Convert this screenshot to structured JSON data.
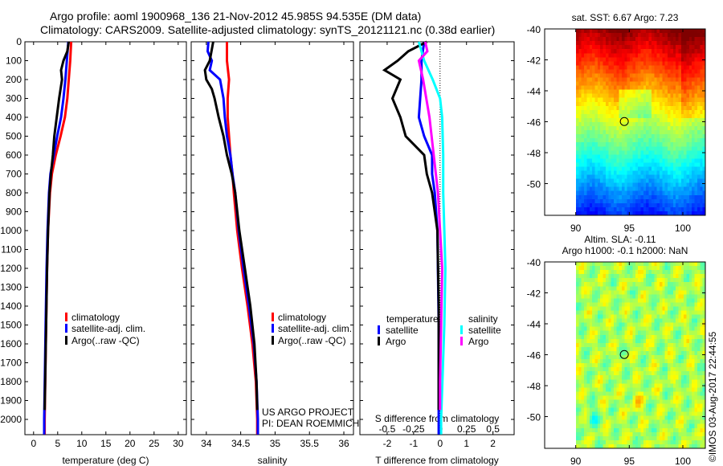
{
  "title": {
    "line1": "Argo profile: aoml 1900968_136 21-Nov-2012 45.985S 94.535E (DM data)",
    "line2": "Climatology: CARS2009. Satellite-adjusted climatology: synTS_20121121.nc (0.38d earlier)"
  },
  "footer_stamp": "©IMOS 03-Aug-2017 22:44:55",
  "colors": {
    "climatology": "#ff0000",
    "satellite": "#0000ff",
    "argo": "#000000",
    "s_satellite": "#00ffff",
    "s_argo": "#ff00ff"
  },
  "chart_data": [
    {
      "type": "line",
      "name": "temperature-profile",
      "xlabel": "temperature (deg C)",
      "ylabel": "",
      "xlim": [
        -1.8,
        31.7
      ],
      "ylim": [
        2080,
        0
      ],
      "xticks": [
        "0",
        "5",
        "10",
        "15",
        "20",
        "25",
        "30"
      ],
      "xtick_values": [
        0,
        5,
        10,
        15,
        20,
        25,
        30
      ],
      "yticks": [
        "0",
        "100",
        "200",
        "300",
        "400",
        "500",
        "600",
        "700",
        "800",
        "900",
        "1000",
        "1100",
        "1200",
        "1300",
        "1400",
        "1500",
        "1600",
        "1700",
        "1800",
        "1900",
        "2000"
      ],
      "legend": [
        "climatology",
        "satellite-adj. clim.",
        "Argo(..raw -QC)"
      ],
      "series": [
        {
          "name": "climatology",
          "color": "#ff0000",
          "depth": [
            0,
            100,
            200,
            300,
            400,
            500,
            600,
            700,
            800,
            1000,
            1200,
            1500,
            2000,
            2080
          ],
          "values": [
            7.8,
            7.6,
            7.3,
            7.0,
            6.5,
            5.6,
            4.6,
            3.8,
            3.4,
            3.0,
            2.8,
            2.6,
            2.3,
            2.3
          ]
        },
        {
          "name": "satellite-adj. clim.",
          "color": "#0000ff",
          "depth": [
            0,
            100,
            200,
            300,
            400,
            500,
            600,
            700,
            800,
            1000,
            1200,
            1500,
            2000,
            2080
          ],
          "values": [
            7.2,
            6.9,
            6.6,
            6.2,
            5.7,
            4.9,
            4.2,
            3.5,
            3.2,
            2.9,
            2.7,
            2.5,
            2.2,
            2.2
          ]
        },
        {
          "name": "Argo(..raw -QC)",
          "color": "#000000",
          "depth": [
            0,
            50,
            100,
            150,
            200,
            300,
            400,
            500,
            600,
            700,
            800,
            1000,
            1200,
            1500,
            1950
          ],
          "values": [
            7.3,
            7.0,
            6.2,
            5.7,
            5.9,
            5.3,
            4.8,
            4.3,
            4.0,
            3.6,
            3.3,
            3.0,
            2.8,
            2.6,
            2.3
          ]
        }
      ]
    },
    {
      "type": "line",
      "name": "salinity-profile",
      "xlabel": "salinity",
      "xlim": [
        33.78,
        36.14
      ],
      "ylim": [
        2080,
        0
      ],
      "xticks": [
        "34",
        "34.5",
        "35",
        "35.5",
        "36"
      ],
      "xtick_values": [
        34,
        34.5,
        35,
        35.5,
        36
      ],
      "legend": [
        "climatology",
        "satellite-adj. clim.",
        "Argo(..raw -QC)"
      ],
      "annotation": [
        "US ARGO PROJECT",
        "PI: DEAN ROEMMICH"
      ],
      "series": [
        {
          "name": "climatology",
          "color": "#ff0000",
          "depth": [
            0,
            100,
            200,
            300,
            400,
            500,
            600,
            700,
            800,
            1000,
            1200,
            1400,
            1600,
            1800,
            2000,
            2080
          ],
          "values": [
            34.3,
            34.3,
            34.33,
            34.31,
            34.31,
            34.33,
            34.35,
            34.38,
            34.4,
            34.45,
            34.52,
            34.6,
            34.67,
            34.72,
            34.74,
            34.74
          ]
        },
        {
          "name": "satellite-adj. clim.",
          "color": "#0000ff",
          "depth": [
            0,
            50,
            100,
            150,
            200,
            300,
            400,
            500,
            600,
            700,
            800,
            1000,
            1200,
            1400,
            1600,
            1800,
            2000,
            2080
          ],
          "values": [
            34.03,
            34.02,
            34.08,
            34.05,
            34.2,
            34.25,
            34.27,
            34.3,
            34.35,
            34.38,
            34.42,
            34.47,
            34.54,
            34.62,
            34.69,
            34.73,
            34.75,
            34.75
          ]
        },
        {
          "name": "Argo(..raw -QC)",
          "color": "#000000",
          "depth": [
            0,
            100,
            150,
            200,
            250,
            300,
            400,
            500,
            600,
            700,
            800,
            1000,
            1200,
            1400,
            1600,
            1800,
            1950
          ],
          "values": [
            34.1,
            34.05,
            33.98,
            34.0,
            34.08,
            34.12,
            34.18,
            34.25,
            34.3,
            34.37,
            34.42,
            34.48,
            34.56,
            34.64,
            34.7,
            34.73,
            34.74
          ]
        }
      ]
    },
    {
      "type": "line",
      "name": "difference-profile",
      "xlabel": "T difference from climatology",
      "xlabel_top": "S difference from climatology",
      "xlim": [
        -3.03,
        2.8
      ],
      "ylim": [
        2080,
        0
      ],
      "xticks": [
        "-2",
        "-1",
        "0",
        "1",
        "2"
      ],
      "xtick_values": [
        -2,
        -1,
        0,
        1,
        2
      ],
      "s_xticks": [
        "-0.5",
        "-0.25",
        "0",
        "0.25",
        "0.5"
      ],
      "s_xtick_values": [
        -0.5,
        -0.25,
        0,
        0.25,
        0.5
      ],
      "legend": {
        "temperature_title": "temperature",
        "salinity_title": "salinity",
        "t_satellite": "satellite",
        "t_argo": "Argo",
        "s_satellite": "satellite",
        "s_argo": "Argo"
      },
      "series": [
        {
          "name": "T satellite",
          "axis": "T",
          "color": "#0000ff",
          "depth": [
            0,
            100,
            200,
            400,
            500,
            600,
            700,
            800,
            1000,
            1500,
            2000,
            2080
          ],
          "values": [
            -0.6,
            -0.7,
            -0.7,
            -0.8,
            -0.6,
            -0.3,
            -0.3,
            -0.2,
            -0.1,
            -0.05,
            -0.05,
            -0.05
          ]
        },
        {
          "name": "T Argo",
          "axis": "T",
          "color": "#000000",
          "depth": [
            0,
            50,
            100,
            150,
            200,
            300,
            400,
            500,
            600,
            700,
            800,
            1000,
            1400,
            1800,
            1950
          ],
          "values": [
            -0.5,
            -1.2,
            -1.6,
            -2.1,
            -1.5,
            -1.8,
            -1.5,
            -1.3,
            -0.6,
            -0.5,
            -0.3,
            -0.1,
            -0.05,
            -0.05,
            -0.05
          ]
        },
        {
          "name": "S satellite",
          "axis": "S",
          "color": "#00ffff",
          "depth": [
            0,
            100,
            200,
            300,
            400,
            600,
            800,
            1000,
            1200,
            1500,
            2000,
            2080
          ],
          "values": [
            -0.2,
            -0.15,
            -0.07,
            0.0,
            0.02,
            0.03,
            0.03,
            0.04,
            0.05,
            0.04,
            0.01,
            0.01
          ]
        },
        {
          "name": "S Argo",
          "axis": "S",
          "color": "#ff00ff",
          "depth": [
            0,
            50,
            100,
            200,
            400,
            600,
            800,
            1000,
            1200,
            1500,
            1800,
            1950
          ],
          "values": [
            -0.14,
            -0.12,
            -0.2,
            -0.16,
            -0.1,
            -0.06,
            -0.02,
            0.0,
            0.02,
            0.01,
            0.0,
            0.0
          ]
        }
      ]
    },
    {
      "type": "heatmap",
      "name": "sst-map",
      "title": "sat. SST: 6.67 Argo: 7.23",
      "xlim": [
        87.1,
        102.1
      ],
      "ylim": [
        -52.05,
        -40
      ],
      "xticks": [
        "90",
        "95",
        "100"
      ],
      "xtick_values": [
        90,
        95,
        100
      ],
      "yticks": [
        "-40",
        "-42",
        "-44",
        "-46",
        "-48",
        "-50"
      ],
      "ytick_values": [
        -40,
        -42,
        -44,
        -46,
        -48,
        -50
      ],
      "marker": {
        "lon": 94.535,
        "lat": -45.985
      }
    },
    {
      "type": "heatmap",
      "name": "sla-map",
      "title": "Altim. SLA: -0.11",
      "subtitle": "Argo h1000: -0.1 h2000: NaN",
      "xlim": [
        87.1,
        102.1
      ],
      "ylim": [
        -52.05,
        -40
      ],
      "xticks": [
        "90",
        "95",
        "100"
      ],
      "xtick_values": [
        90,
        95,
        100
      ],
      "yticks": [
        "-40",
        "-42",
        "-44",
        "-46",
        "-48",
        "-50"
      ],
      "ytick_values": [
        -40,
        -42,
        -44,
        -46,
        -48,
        -50
      ],
      "marker": {
        "lon": 94.535,
        "lat": -45.985
      }
    }
  ]
}
